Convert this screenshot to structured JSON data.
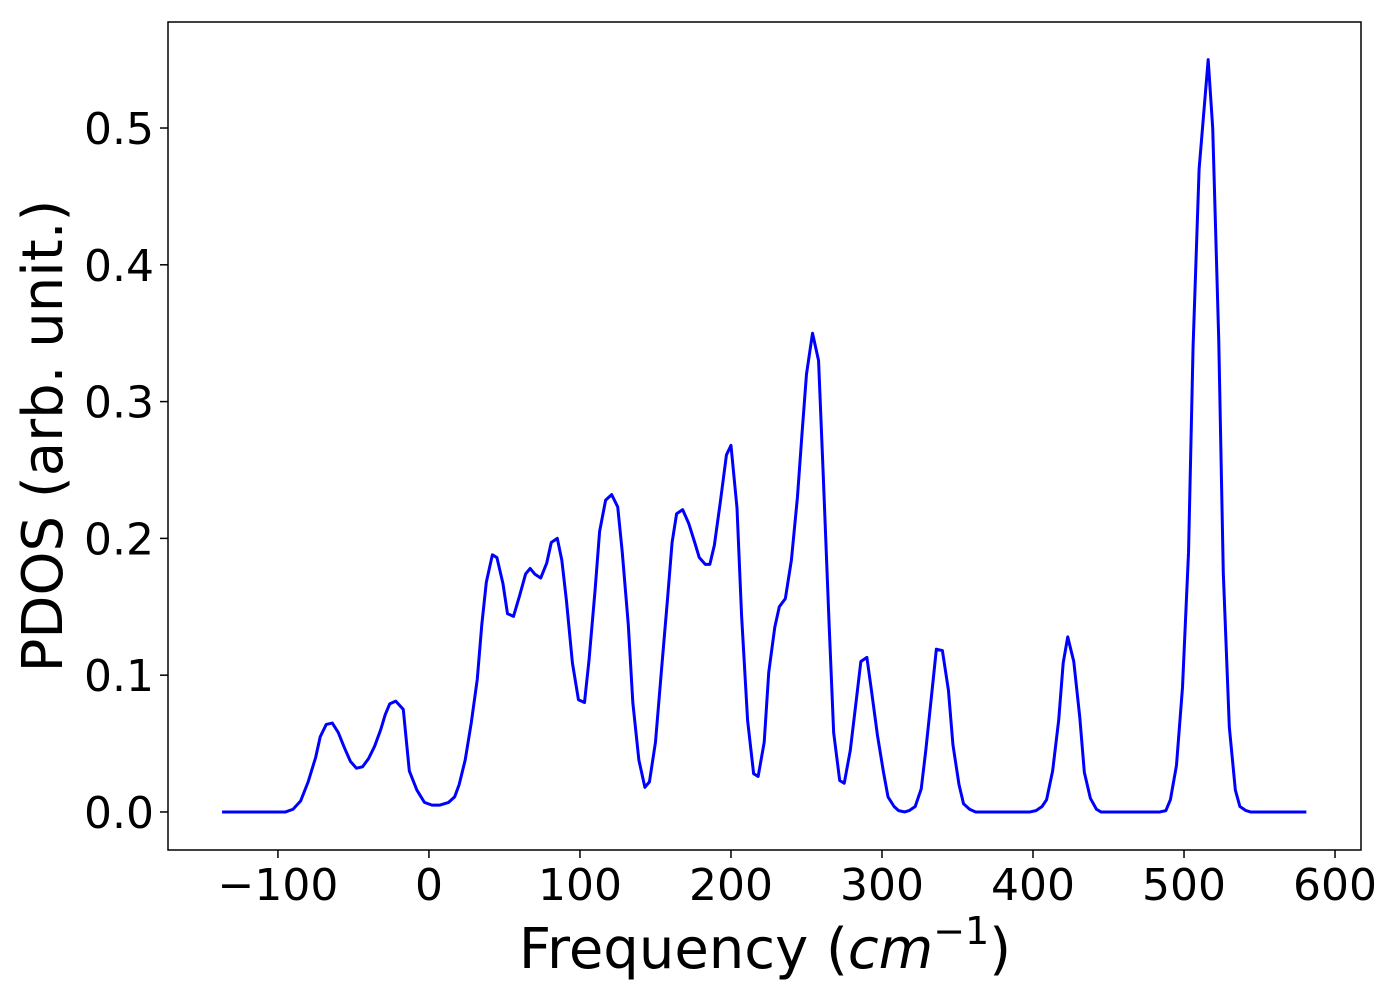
{
  "chart_data": {
    "type": "line",
    "xlabel": [
      "Frequency (",
      "cm",
      "−1",
      ")"
    ],
    "ylabel": "PDOS (arb. unit.)",
    "color": "#0000ff",
    "xlim": [
      -172.8,
      617.2
    ],
    "ylim": [
      -0.0278,
      0.5775
    ],
    "xticks": [
      {
        "value": -100,
        "label": "−100"
      },
      0,
      100,
      200,
      300,
      400,
      500,
      600
    ],
    "yticks": [
      {
        "value": 0,
        "label": "0.0"
      },
      0.1,
      0.2,
      0.3,
      0.4,
      0.5
    ],
    "x": [
      -137,
      -95,
      -90,
      -85,
      -80,
      -75,
      -72,
      -68,
      -64,
      -60,
      -56,
      -52,
      -48,
      -44,
      -40,
      -36,
      -32,
      -29,
      -26,
      -22,
      -17,
      -13,
      -8,
      -3,
      2,
      7,
      13,
      17,
      20,
      24,
      28,
      32,
      35,
      38,
      42,
      45,
      49,
      52,
      56,
      60,
      64,
      67,
      70,
      74,
      78,
      81,
      85,
      88,
      91,
      95,
      99,
      103,
      106,
      110,
      113,
      117,
      121,
      125,
      128,
      132,
      135,
      139,
      143,
      146,
      150,
      154,
      158,
      161,
      164,
      168,
      172,
      176,
      179,
      183,
      186,
      189,
      193,
      197,
      200,
      204,
      207,
      211,
      215,
      218,
      222,
      225,
      229,
      232,
      236,
      240,
      244,
      247,
      250,
      254,
      258,
      261,
      265,
      268,
      272,
      275,
      279,
      283,
      286,
      290,
      293,
      297,
      301,
      304,
      308,
      311,
      315,
      318,
      322,
      326,
      329,
      333,
      336,
      340,
      344,
      347,
      351,
      354,
      358,
      362,
      398,
      402,
      406,
      409,
      413,
      417,
      420,
      423,
      427,
      431,
      434,
      438,
      442,
      445,
      484,
      488,
      491,
      495,
      499,
      503,
      506,
      510,
      516,
      519,
      523,
      526,
      530,
      534,
      537,
      541,
      544,
      581
    ],
    "values": [
      0,
      0,
      0.002,
      0.008,
      0.022,
      0.04,
      0.055,
      0.064,
      0.065,
      0.058,
      0.047,
      0.037,
      0.032,
      0.033,
      0.039,
      0.048,
      0.06,
      0.071,
      0.079,
      0.081,
      0.075,
      0.03,
      0.016,
      0.007,
      0.005,
      0.005,
      0.007,
      0.011,
      0.02,
      0.038,
      0.065,
      0.097,
      0.137,
      0.168,
      0.188,
      0.186,
      0.167,
      0.145,
      0.143,
      0.158,
      0.174,
      0.178,
      0.174,
      0.171,
      0.182,
      0.197,
      0.2,
      0.184,
      0.155,
      0.109,
      0.082,
      0.08,
      0.111,
      0.162,
      0.205,
      0.228,
      0.232,
      0.223,
      0.19,
      0.137,
      0.08,
      0.038,
      0.018,
      0.022,
      0.051,
      0.104,
      0.156,
      0.197,
      0.218,
      0.221,
      0.211,
      0.197,
      0.186,
      0.181,
      0.181,
      0.195,
      0.227,
      0.261,
      0.268,
      0.222,
      0.144,
      0.067,
      0.028,
      0.026,
      0.051,
      0.102,
      0.135,
      0.15,
      0.156,
      0.184,
      0.23,
      0.276,
      0.32,
      0.35,
      0.33,
      0.249,
      0.137,
      0.058,
      0.023,
      0.021,
      0.045,
      0.082,
      0.11,
      0.113,
      0.089,
      0.056,
      0.029,
      0.011,
      0.004,
      0.001,
      0,
      0.001,
      0.004,
      0.017,
      0.045,
      0.087,
      0.119,
      0.118,
      0.089,
      0.049,
      0.02,
      0.006,
      0.002,
      0,
      0,
      0.001,
      0.004,
      0.009,
      0.03,
      0.067,
      0.109,
      0.128,
      0.11,
      0.069,
      0.029,
      0.01,
      0.002,
      0,
      0,
      0.001,
      0.009,
      0.034,
      0.091,
      0.19,
      0.34,
      0.47,
      0.55,
      0.5,
      0.345,
      0.175,
      0.062,
      0.016,
      0.004,
      0.001,
      0,
      0
    ]
  }
}
